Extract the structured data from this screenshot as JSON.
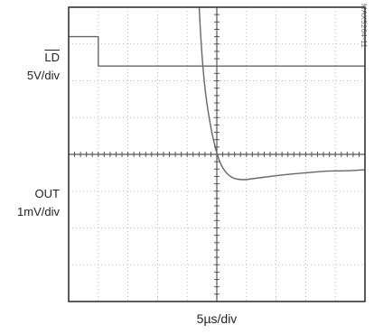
{
  "chart_data": {
    "type": "line",
    "x_divisions": 10,
    "y_divisions": 8,
    "minor_ticks_per_division": 5,
    "grid": "dotted",
    "xlabel": "5µs/div",
    "reference": "MAX5264-11",
    "channels": [
      {
        "label": "LD",
        "label_overline": true,
        "scale": "5V/div",
        "units": "divisions",
        "x": [
          0,
          1.0,
          1.0,
          10
        ],
        "y": [
          7.2,
          7.2,
          6.4,
          6.4
        ]
      },
      {
        "label": "OUT",
        "scale": "1mV/div",
        "units": "divisions",
        "x": [
          4.35,
          4.45,
          4.6,
          4.8,
          5.0,
          5.2,
          5.5,
          5.9,
          6.3,
          6.8,
          7.3,
          8.0,
          8.7,
          9.4,
          10
        ],
        "y": [
          9.0,
          7.2,
          5.7,
          4.7,
          4.0,
          3.6,
          3.35,
          3.3,
          3.35,
          3.4,
          3.45,
          3.5,
          3.55,
          3.55,
          3.58
        ]
      }
    ]
  }
}
